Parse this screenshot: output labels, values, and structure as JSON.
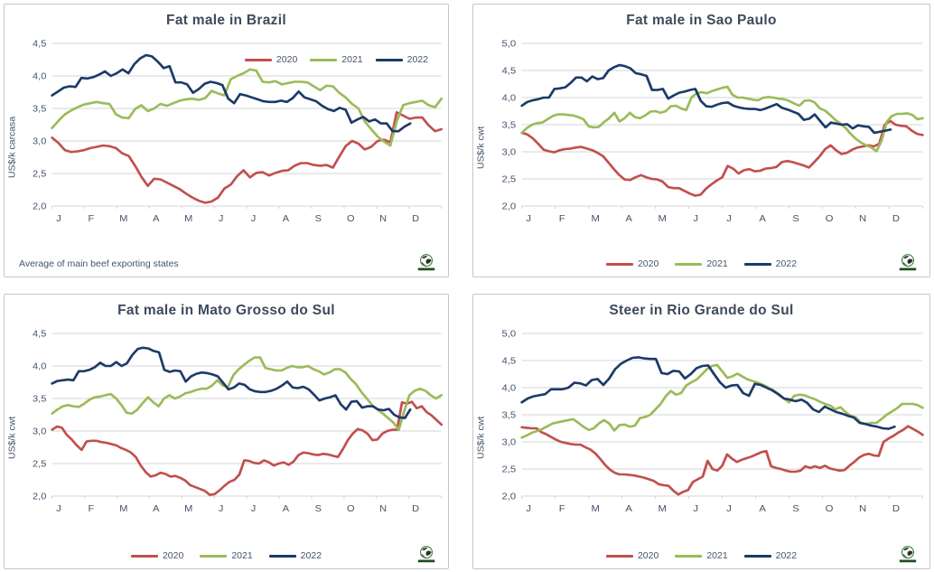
{
  "colors": {
    "2020": "#C0504D",
    "2021": "#9BBB59",
    "2022": "#1C3A69",
    "grid": "#D6D6D6",
    "axis_text": "#44546A",
    "title_text": "#3E4A5C",
    "panel_border": "#C6C6C6"
  },
  "icons": {
    "logo": "globe-icon"
  },
  "chart_data": [
    {
      "type": "line",
      "title": "Fat male in Brazil",
      "xlabel": "",
      "ylabel": "US$/k carcasa",
      "ylim": [
        2.0,
        4.5
      ],
      "ystep": 0.5,
      "ytick_labels": [
        "2,0",
        "2,5",
        "3,0",
        "3,5",
        "4,0",
        "4,5"
      ],
      "categories": [
        "J",
        "F",
        "M",
        "A",
        "M",
        "J",
        "J",
        "A",
        "S",
        "O",
        "N",
        "D"
      ],
      "grid": true,
      "legend_position": "inset-top-right",
      "note": "Average of main beef exporting states",
      "series": [
        {
          "name": "2020",
          "color": "2020",
          "x_end": 1.0,
          "values": [
            3.05,
            2.97,
            2.86,
            2.83,
            2.84,
            2.86,
            2.89,
            2.91,
            2.93,
            2.92,
            2.89,
            2.81,
            2.77,
            2.62,
            2.45,
            2.31,
            2.42,
            2.41,
            2.36,
            2.31,
            2.26,
            2.19,
            2.13,
            2.08,
            2.05,
            2.07,
            2.13,
            2.27,
            2.33,
            2.46,
            2.55,
            2.44,
            2.51,
            2.52,
            2.47,
            2.51,
            2.54,
            2.55,
            2.62,
            2.66,
            2.66,
            2.63,
            2.62,
            2.63,
            2.59,
            2.76,
            2.92,
            3.0,
            2.96,
            2.87,
            2.91,
            3.0,
            3.02,
            2.98,
            3.44,
            3.39,
            3.34,
            3.36,
            3.36,
            3.24,
            3.15,
            3.18
          ]
        },
        {
          "name": "2021",
          "color": "2021",
          "x_end": 1.0,
          "values": [
            3.2,
            3.31,
            3.41,
            3.47,
            3.52,
            3.56,
            3.58,
            3.6,
            3.58,
            3.57,
            3.41,
            3.36,
            3.35,
            3.49,
            3.55,
            3.46,
            3.5,
            3.57,
            3.54,
            3.58,
            3.62,
            3.64,
            3.65,
            3.63,
            3.66,
            3.77,
            3.73,
            3.7,
            3.95,
            4.0,
            4.04,
            4.1,
            4.08,
            3.91,
            3.9,
            3.92,
            3.87,
            3.89,
            3.91,
            3.91,
            3.9,
            3.84,
            3.78,
            3.85,
            3.84,
            3.74,
            3.67,
            3.57,
            3.5,
            3.3,
            3.18,
            3.07,
            2.99,
            2.93,
            3.3,
            3.55,
            3.58,
            3.6,
            3.62,
            3.55,
            3.52,
            3.65
          ]
        },
        {
          "name": "2022",
          "color": "2022",
          "x_end": 0.92,
          "values": [
            3.7,
            3.76,
            3.82,
            3.84,
            3.83,
            3.97,
            3.96,
            3.98,
            4.02,
            4.07,
            4.0,
            4.04,
            4.1,
            4.04,
            4.18,
            4.27,
            4.32,
            4.3,
            4.22,
            4.12,
            4.15,
            3.9,
            3.9,
            3.87,
            3.74,
            3.8,
            3.88,
            3.91,
            3.89,
            3.86,
            3.65,
            3.58,
            3.72,
            3.7,
            3.67,
            3.64,
            3.61,
            3.6,
            3.6,
            3.62,
            3.6,
            3.66,
            3.76,
            3.67,
            3.64,
            3.61,
            3.54,
            3.49,
            3.46,
            3.51,
            3.48,
            3.28,
            3.33,
            3.37,
            3.3,
            3.33,
            3.27,
            3.27,
            3.15,
            3.15,
            3.22,
            3.27
          ]
        }
      ]
    },
    {
      "type": "line",
      "title": "Fat male in Sao Paulo",
      "xlabel": "",
      "ylabel": "US$/k cwt",
      "ylim": [
        2.0,
        5.0
      ],
      "ystep": 0.5,
      "ytick_labels": [
        "2,0",
        "2,5",
        "3,0",
        "3,5",
        "4,0",
        "4,5",
        "5,0"
      ],
      "categories": [
        "J",
        "F",
        "M",
        "A",
        "M",
        "J",
        "J",
        "A",
        "S",
        "O",
        "N",
        "D"
      ],
      "grid": true,
      "legend_position": "bottom",
      "series": [
        {
          "name": "2020",
          "color": "2020",
          "x_end": 1.0,
          "values": [
            3.35,
            3.32,
            3.25,
            3.15,
            3.04,
            3.01,
            2.99,
            3.03,
            3.05,
            3.06,
            3.08,
            3.09,
            3.06,
            3.03,
            2.98,
            2.92,
            2.8,
            2.68,
            2.57,
            2.49,
            2.48,
            2.53,
            2.57,
            2.53,
            2.5,
            2.49,
            2.45,
            2.35,
            2.33,
            2.33,
            2.28,
            2.23,
            2.19,
            2.21,
            2.32,
            2.4,
            2.47,
            2.53,
            2.74,
            2.69,
            2.6,
            2.66,
            2.68,
            2.64,
            2.65,
            2.69,
            2.7,
            2.72,
            2.81,
            2.83,
            2.81,
            2.78,
            2.75,
            2.71,
            2.81,
            2.92,
            3.05,
            3.12,
            3.03,
            2.96,
            2.98,
            3.04,
            3.08,
            3.1,
            3.12,
            3.1,
            3.15,
            3.5,
            3.57,
            3.5,
            3.48,
            3.47,
            3.39,
            3.33,
            3.31
          ]
        },
        {
          "name": "2021",
          "color": "2021",
          "x_end": 1.0,
          "values": [
            3.35,
            3.44,
            3.5,
            3.53,
            3.54,
            3.6,
            3.66,
            3.69,
            3.69,
            3.68,
            3.67,
            3.64,
            3.6,
            3.47,
            3.45,
            3.46,
            3.55,
            3.62,
            3.72,
            3.56,
            3.62,
            3.72,
            3.64,
            3.62,
            3.67,
            3.74,
            3.75,
            3.72,
            3.75,
            3.84,
            3.85,
            3.8,
            3.77,
            4.0,
            4.08,
            4.1,
            4.08,
            4.12,
            4.15,
            4.18,
            4.2,
            4.05,
            4.0,
            4.0,
            3.98,
            3.96,
            3.95,
            4.0,
            4.01,
            4.0,
            3.98,
            3.97,
            3.94,
            3.89,
            3.85,
            3.94,
            3.95,
            3.91,
            3.8,
            3.76,
            3.68,
            3.59,
            3.52,
            3.44,
            3.33,
            3.24,
            3.17,
            3.12,
            3.08,
            3.01,
            3.2,
            3.55,
            3.66,
            3.7,
            3.7,
            3.71,
            3.68,
            3.6,
            3.62
          ]
        },
        {
          "name": "2022",
          "color": "2022",
          "x_end": 0.92,
          "values": [
            3.85,
            3.92,
            3.95,
            3.97,
            4.0,
            4.0,
            4.16,
            4.17,
            4.19,
            4.27,
            4.37,
            4.37,
            4.3,
            4.39,
            4.34,
            4.36,
            4.5,
            4.56,
            4.6,
            4.58,
            4.54,
            4.45,
            4.43,
            4.4,
            4.14,
            4.14,
            4.16,
            3.98,
            4.04,
            4.09,
            4.11,
            4.14,
            4.16,
            3.94,
            3.84,
            3.83,
            3.87,
            3.9,
            3.91,
            3.85,
            3.82,
            3.8,
            3.79,
            3.79,
            3.77,
            3.8,
            3.84,
            3.88,
            3.81,
            3.78,
            3.74,
            3.7,
            3.59,
            3.61,
            3.69,
            3.57,
            3.45,
            3.54,
            3.52,
            3.5,
            3.51,
            3.43,
            3.49,
            3.47,
            3.46,
            3.35,
            3.37,
            3.39,
            3.41
          ]
        }
      ]
    },
    {
      "type": "line",
      "title": "Fat male in Mato Grosso do Sul",
      "xlabel": "",
      "ylabel": "US$/k cwt",
      "ylim": [
        2.0,
        4.5
      ],
      "ystep": 0.5,
      "ytick_labels": [
        "2,0",
        "2,5",
        "3,0",
        "3,5",
        "4,0",
        "4,5"
      ],
      "categories": [
        "J",
        "F",
        "M",
        "A",
        "M",
        "J",
        "J",
        "A",
        "S",
        "O",
        "N",
        "D"
      ],
      "grid": true,
      "legend_position": "bottom",
      "series": [
        {
          "name": "2020",
          "color": "2020",
          "x_end": 1.0,
          "values": [
            3.02,
            3.07,
            3.05,
            2.94,
            2.87,
            2.78,
            2.71,
            2.84,
            2.85,
            2.85,
            2.83,
            2.82,
            2.8,
            2.78,
            2.74,
            2.71,
            2.67,
            2.6,
            2.47,
            2.37,
            2.3,
            2.32,
            2.36,
            2.34,
            2.3,
            2.31,
            2.28,
            2.24,
            2.17,
            2.14,
            2.11,
            2.08,
            2.02,
            2.03,
            2.09,
            2.16,
            2.22,
            2.25,
            2.33,
            2.55,
            2.54,
            2.51,
            2.5,
            2.55,
            2.52,
            2.47,
            2.5,
            2.52,
            2.48,
            2.53,
            2.63,
            2.67,
            2.66,
            2.64,
            2.63,
            2.65,
            2.64,
            2.62,
            2.6,
            2.72,
            2.86,
            2.96,
            3.03,
            3.01,
            2.96,
            2.86,
            2.87,
            2.96,
            3.0,
            3.02,
            3.02,
            3.44,
            3.42,
            3.45,
            3.35,
            3.38,
            3.29,
            3.24,
            3.17,
            3.1
          ]
        },
        {
          "name": "2021",
          "color": "2021",
          "x_end": 1.0,
          "values": [
            3.27,
            3.33,
            3.38,
            3.4,
            3.38,
            3.37,
            3.42,
            3.48,
            3.52,
            3.53,
            3.55,
            3.57,
            3.5,
            3.4,
            3.28,
            3.27,
            3.33,
            3.43,
            3.52,
            3.44,
            3.38,
            3.5,
            3.55,
            3.5,
            3.53,
            3.58,
            3.6,
            3.63,
            3.65,
            3.65,
            3.7,
            3.78,
            3.7,
            3.68,
            3.86,
            3.95,
            4.02,
            4.08,
            4.13,
            4.13,
            3.97,
            3.95,
            3.93,
            3.93,
            3.97,
            4.0,
            3.98,
            3.98,
            4.0,
            3.95,
            3.92,
            3.87,
            3.9,
            3.95,
            3.95,
            3.9,
            3.8,
            3.72,
            3.6,
            3.5,
            3.4,
            3.33,
            3.27,
            3.2,
            3.13,
            3.02,
            3.3,
            3.55,
            3.62,
            3.65,
            3.62,
            3.55,
            3.5,
            3.55
          ]
        },
        {
          "name": "2022",
          "color": "2022",
          "x_end": 0.92,
          "values": [
            3.73,
            3.77,
            3.78,
            3.79,
            3.78,
            3.92,
            3.92,
            3.94,
            3.98,
            4.05,
            4.0,
            4.0,
            4.06,
            4.0,
            4.04,
            4.17,
            4.26,
            4.28,
            4.27,
            4.23,
            4.21,
            3.94,
            3.91,
            3.93,
            3.92,
            3.76,
            3.84,
            3.88,
            3.9,
            3.89,
            3.87,
            3.84,
            3.74,
            3.64,
            3.67,
            3.73,
            3.71,
            3.64,
            3.61,
            3.6,
            3.6,
            3.62,
            3.65,
            3.7,
            3.76,
            3.67,
            3.66,
            3.68,
            3.64,
            3.56,
            3.47,
            3.5,
            3.52,
            3.55,
            3.41,
            3.33,
            3.45,
            3.46,
            3.36,
            3.38,
            3.38,
            3.33,
            3.32,
            3.34,
            3.25,
            3.21,
            3.2,
            3.33
          ]
        }
      ]
    },
    {
      "type": "line",
      "title": "Steer  in Rio Grande do Sul",
      "xlabel": "",
      "ylabel": "US$/k cwt",
      "ylim": [
        2.0,
        5.0
      ],
      "ystep": 0.5,
      "ytick_labels": [
        "2,0",
        "2,5",
        "3,0",
        "3,5",
        "4,0",
        "4,5",
        "5,0"
      ],
      "categories": [
        "J",
        "F",
        "M",
        "A",
        "M",
        "J",
        "J",
        "A",
        "S",
        "O",
        "N",
        "D"
      ],
      "grid": true,
      "legend_position": "bottom",
      "series": [
        {
          "name": "2020",
          "color": "2020",
          "x_end": 1.0,
          "values": [
            3.27,
            3.26,
            3.25,
            3.25,
            3.18,
            3.14,
            3.09,
            3.04,
            3.0,
            2.98,
            2.96,
            2.95,
            2.95,
            2.9,
            2.86,
            2.79,
            2.69,
            2.58,
            2.49,
            2.43,
            2.4,
            2.4,
            2.39,
            2.38,
            2.36,
            2.34,
            2.31,
            2.28,
            2.22,
            2.2,
            2.19,
            2.1,
            2.03,
            2.08,
            2.11,
            2.26,
            2.31,
            2.36,
            2.65,
            2.5,
            2.47,
            2.56,
            2.77,
            2.69,
            2.63,
            2.67,
            2.7,
            2.73,
            2.77,
            2.81,
            2.83,
            2.55,
            2.52,
            2.5,
            2.47,
            2.45,
            2.45,
            2.47,
            2.55,
            2.52,
            2.55,
            2.52,
            2.56,
            2.51,
            2.49,
            2.47,
            2.48,
            2.56,
            2.63,
            2.71,
            2.76,
            2.78,
            2.75,
            2.74,
            3.0,
            3.06,
            3.11,
            3.17,
            3.22,
            3.29,
            3.24,
            3.19,
            3.13
          ]
        },
        {
          "name": "2021",
          "color": "2021",
          "x_end": 1.0,
          "values": [
            3.08,
            3.12,
            3.17,
            3.2,
            3.24,
            3.29,
            3.34,
            3.36,
            3.38,
            3.4,
            3.42,
            3.35,
            3.28,
            3.22,
            3.25,
            3.34,
            3.4,
            3.34,
            3.21,
            3.31,
            3.32,
            3.28,
            3.3,
            3.44,
            3.46,
            3.5,
            3.6,
            3.7,
            3.84,
            3.94,
            3.87,
            3.9,
            4.04,
            4.1,
            4.15,
            4.24,
            4.34,
            4.4,
            4.42,
            4.3,
            4.18,
            4.21,
            4.26,
            4.2,
            4.15,
            4.12,
            4.09,
            4.05,
            4.0,
            3.95,
            3.88,
            3.8,
            3.73,
            3.85,
            3.87,
            3.86,
            3.82,
            3.79,
            3.74,
            3.7,
            3.67,
            3.6,
            3.64,
            3.55,
            3.48,
            3.45,
            3.35,
            3.33,
            3.35,
            3.35,
            3.42,
            3.5,
            3.56,
            3.62,
            3.7,
            3.7,
            3.7,
            3.68,
            3.63
          ]
        },
        {
          "name": "2022",
          "color": "2022",
          "x_end": 0.93,
          "values": [
            3.73,
            3.8,
            3.84,
            3.86,
            3.88,
            3.97,
            3.97,
            3.97,
            4.0,
            4.09,
            4.08,
            4.04,
            4.14,
            4.16,
            4.05,
            4.17,
            4.34,
            4.44,
            4.5,
            4.55,
            4.56,
            4.54,
            4.53,
            4.53,
            4.27,
            4.25,
            4.31,
            4.3,
            4.17,
            4.25,
            4.36,
            4.4,
            4.41,
            4.25,
            4.1,
            4.0,
            4.04,
            4.05,
            3.9,
            3.85,
            4.07,
            4.05,
            4.0,
            3.95,
            3.88,
            3.8,
            3.78,
            3.75,
            3.78,
            3.72,
            3.6,
            3.55,
            3.65,
            3.6,
            3.55,
            3.52,
            3.48,
            3.45,
            3.35,
            3.33,
            3.3,
            3.28,
            3.25,
            3.24,
            3.28
          ]
        }
      ]
    }
  ]
}
